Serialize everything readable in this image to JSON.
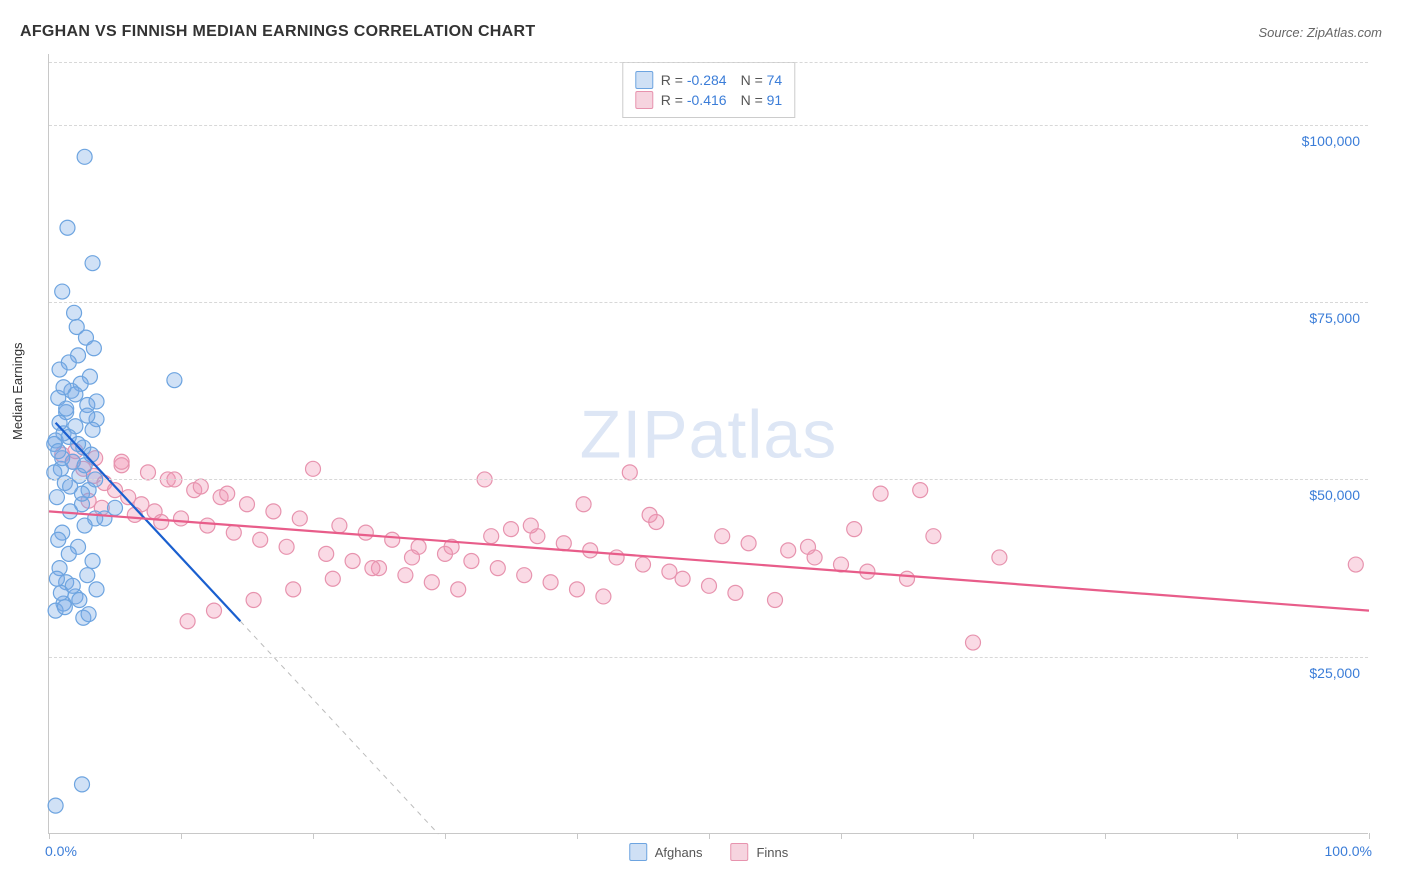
{
  "header": {
    "title": "AFGHAN VS FINNISH MEDIAN EARNINGS CORRELATION CHART",
    "source": "Source: ZipAtlas.com"
  },
  "watermark": "ZIPatlas",
  "chart": {
    "type": "scatter",
    "ylabel": "Median Earnings",
    "xlim": [
      0,
      100
    ],
    "ylim": [
      0,
      110000
    ],
    "ytick_values": [
      25000,
      50000,
      75000,
      100000
    ],
    "ytick_labels": [
      "$25,000",
      "$50,000",
      "$75,000",
      "$100,000"
    ],
    "xtick_values": [
      0,
      10,
      20,
      30,
      40,
      50,
      60,
      70,
      80,
      90,
      100
    ],
    "x_axis_left_label": "0.0%",
    "x_axis_right_label": "100.0%",
    "grid_color": "#d8d8d8",
    "axis_color": "#c8c8c8",
    "background_color": "#ffffff",
    "marker_radius": 7.5,
    "marker_stroke_width": 1.2,
    "trend_line_width": 2.2,
    "dashed_line_width": 1,
    "series": [
      {
        "name": "Afghans",
        "fill_color": "rgba(120,170,230,0.35)",
        "stroke_color": "#6da4e0",
        "trend_color": "#1a5fcf",
        "dashed_color": "#bcbcbc",
        "legend_swatch_fill": "#cfe0f5",
        "legend_swatch_border": "#6da4e0",
        "R": "-0.284",
        "N": "74",
        "trend_line": {
          "x1": 0.5,
          "y1": 58000,
          "x2": 14.5,
          "y2": 30000
        },
        "dashed_ext": {
          "x1": 14.5,
          "y1": 30000,
          "x2": 29.5,
          "y2": 0
        },
        "points": [
          [
            2.7,
            95500
          ],
          [
            1.4,
            85500
          ],
          [
            3.3,
            80500
          ],
          [
            1.0,
            76500
          ],
          [
            1.9,
            73500
          ],
          [
            2.1,
            71500
          ],
          [
            2.8,
            70000
          ],
          [
            3.4,
            68500
          ],
          [
            2.2,
            67500
          ],
          [
            1.5,
            66500
          ],
          [
            0.8,
            65500
          ],
          [
            3.1,
            64500
          ],
          [
            2.4,
            63500
          ],
          [
            1.7,
            62500
          ],
          [
            9.5,
            64000
          ],
          [
            0.7,
            61500
          ],
          [
            2.9,
            60500
          ],
          [
            1.3,
            59500
          ],
          [
            3.6,
            58500
          ],
          [
            2.0,
            57500
          ],
          [
            1.1,
            56500
          ],
          [
            0.5,
            55500
          ],
          [
            2.6,
            54500
          ],
          [
            3.2,
            53500
          ],
          [
            1.8,
            52500
          ],
          [
            0.9,
            51500
          ],
          [
            2.3,
            50500
          ],
          [
            1.2,
            49500
          ],
          [
            3.0,
            48500
          ],
          [
            0.6,
            47500
          ],
          [
            2.5,
            46500
          ],
          [
            1.6,
            45500
          ],
          [
            3.5,
            44500
          ],
          [
            0.4,
            55000
          ],
          [
            2.7,
            43500
          ],
          [
            1.0,
            42500
          ],
          [
            0.7,
            41500
          ],
          [
            2.2,
            40500
          ],
          [
            1.5,
            39500
          ],
          [
            3.3,
            38500
          ],
          [
            0.8,
            37500
          ],
          [
            2.9,
            36500
          ],
          [
            1.3,
            35500
          ],
          [
            3.6,
            34500
          ],
          [
            2.0,
            33500
          ],
          [
            1.1,
            32500
          ],
          [
            0.5,
            31500
          ],
          [
            2.6,
            30500
          ],
          [
            1.8,
            35000
          ],
          [
            0.9,
            34000
          ],
          [
            2.3,
            33000
          ],
          [
            1.2,
            32000
          ],
          [
            3.0,
            31000
          ],
          [
            0.6,
            36000
          ],
          [
            2.5,
            48000
          ],
          [
            1.6,
            49000
          ],
          [
            3.5,
            50000
          ],
          [
            0.4,
            51000
          ],
          [
            2.7,
            52000
          ],
          [
            1.0,
            53000
          ],
          [
            0.7,
            54000
          ],
          [
            2.2,
            55000
          ],
          [
            1.5,
            56000
          ],
          [
            3.3,
            57000
          ],
          [
            0.8,
            58000
          ],
          [
            2.9,
            59000
          ],
          [
            1.3,
            60000
          ],
          [
            3.6,
            61000
          ],
          [
            2.0,
            62000
          ],
          [
            1.1,
            63000
          ],
          [
            0.5,
            4000
          ],
          [
            2.5,
            7000
          ],
          [
            4.2,
            44500
          ],
          [
            5.0,
            46000
          ]
        ]
      },
      {
        "name": "Finns",
        "fill_color": "rgba(240,150,180,0.35)",
        "stroke_color": "#e793ae",
        "trend_color": "#e85d8a",
        "legend_swatch_fill": "#f6d4df",
        "legend_swatch_border": "#e793ae",
        "R": "-0.416",
        "N": "91",
        "trend_line": {
          "x1": 0.0,
          "y1": 45500,
          "x2": 100.0,
          "y2": 31500
        },
        "points": [
          [
            1.0,
            53500
          ],
          [
            1.8,
            52500
          ],
          [
            2.6,
            51500
          ],
          [
            3.4,
            50500
          ],
          [
            4.2,
            49500
          ],
          [
            5.0,
            48500
          ],
          [
            6.0,
            47500
          ],
          [
            7.0,
            46500
          ],
          [
            8.0,
            45500
          ],
          [
            9.0,
            50000
          ],
          [
            10.0,
            44500
          ],
          [
            11.0,
            48500
          ],
          [
            12.0,
            43500
          ],
          [
            13.0,
            47500
          ],
          [
            14.0,
            42500
          ],
          [
            15.0,
            46500
          ],
          [
            16.0,
            41500
          ],
          [
            17.0,
            45500
          ],
          [
            18.0,
            40500
          ],
          [
            19.0,
            44500
          ],
          [
            20.0,
            51500
          ],
          [
            21.0,
            39500
          ],
          [
            22.0,
            43500
          ],
          [
            23.0,
            38500
          ],
          [
            24.0,
            42500
          ],
          [
            25.0,
            37500
          ],
          [
            26.0,
            41500
          ],
          [
            27.0,
            36500
          ],
          [
            28.0,
            40500
          ],
          [
            29.0,
            35500
          ],
          [
            30.0,
            39500
          ],
          [
            31.0,
            34500
          ],
          [
            32.0,
            38500
          ],
          [
            33.0,
            50000
          ],
          [
            34.0,
            37500
          ],
          [
            35.0,
            43000
          ],
          [
            36.0,
            36500
          ],
          [
            37.0,
            42000
          ],
          [
            38.0,
            35500
          ],
          [
            39.0,
            41000
          ],
          [
            40.0,
            34500
          ],
          [
            41.0,
            40000
          ],
          [
            42.0,
            33500
          ],
          [
            43.0,
            39000
          ],
          [
            44.0,
            51000
          ],
          [
            45.0,
            38000
          ],
          [
            46.0,
            44000
          ],
          [
            47.0,
            37000
          ],
          [
            48.0,
            36000
          ],
          [
            50.0,
            35000
          ],
          [
            51.0,
            42000
          ],
          [
            52.0,
            34000
          ],
          [
            53.0,
            41000
          ],
          [
            55.0,
            33000
          ],
          [
            56.0,
            40000
          ],
          [
            58.0,
            39000
          ],
          [
            60.0,
            38000
          ],
          [
            62.0,
            37000
          ],
          [
            63.0,
            48000
          ],
          [
            65.0,
            36000
          ],
          [
            67.0,
            42000
          ],
          [
            70.0,
            27000
          ],
          [
            10.5,
            30000
          ],
          [
            12.5,
            31500
          ],
          [
            15.5,
            33000
          ],
          [
            18.5,
            34500
          ],
          [
            21.5,
            36000
          ],
          [
            24.5,
            37500
          ],
          [
            27.5,
            39000
          ],
          [
            30.5,
            40500
          ],
          [
            33.5,
            42000
          ],
          [
            36.5,
            43500
          ],
          [
            5.5,
            52000
          ],
          [
            7.5,
            51000
          ],
          [
            9.5,
            50000
          ],
          [
            11.5,
            49000
          ],
          [
            13.5,
            48000
          ],
          [
            3.0,
            47000
          ],
          [
            4.0,
            46000
          ],
          [
            6.5,
            45000
          ],
          [
            8.5,
            44000
          ],
          [
            2.0,
            54000
          ],
          [
            3.5,
            53000
          ],
          [
            5.5,
            52500
          ],
          [
            99.0,
            38000
          ],
          [
            66.0,
            48500
          ],
          [
            57.5,
            40500
          ],
          [
            61.0,
            43000
          ],
          [
            72.0,
            39000
          ],
          [
            40.5,
            46500
          ],
          [
            45.5,
            45000
          ]
        ]
      }
    ],
    "bottom_legend": [
      {
        "label": "Afghans",
        "series_ref": 0
      },
      {
        "label": "Finns",
        "series_ref": 1
      }
    ]
  }
}
